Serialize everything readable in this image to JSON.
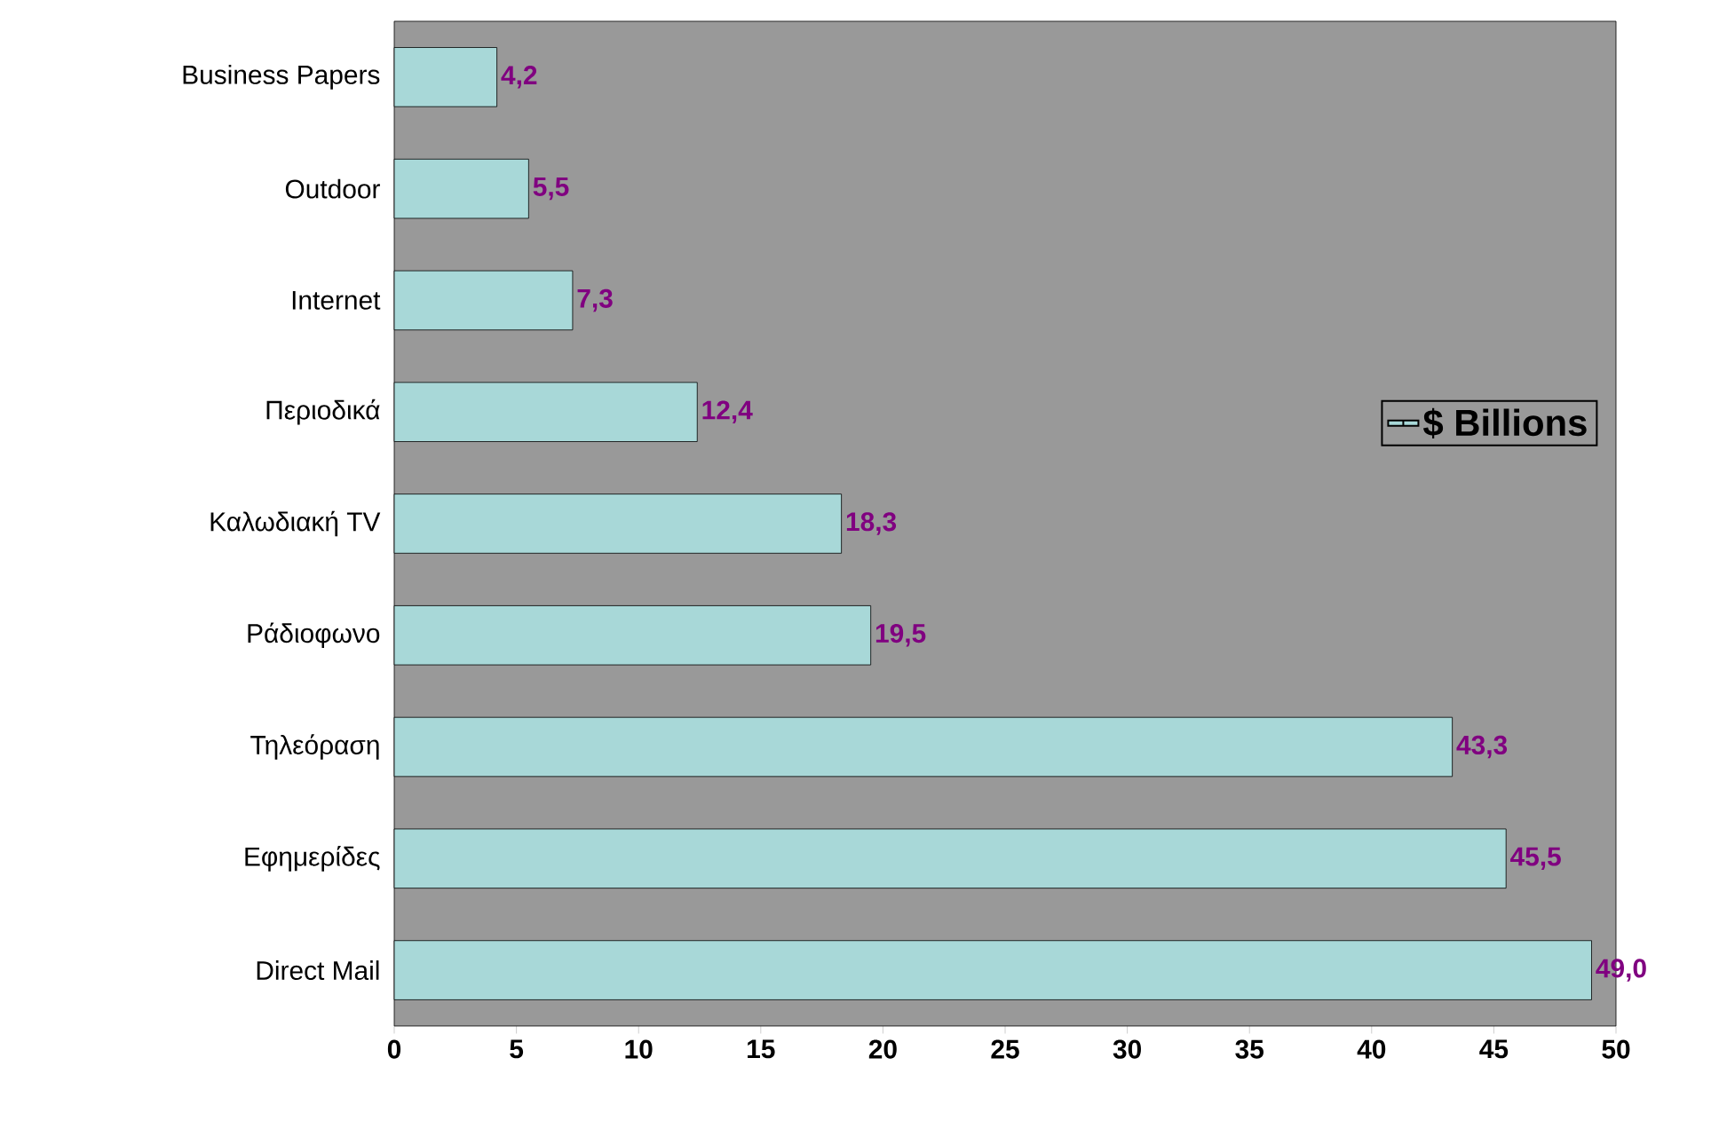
{
  "chart_data": {
    "type": "bar",
    "orientation": "horizontal",
    "categories": [
      "Business Papers",
      "Outdoor",
      "Internet",
      "Περιοδικά",
      "Καλωδιακή TV",
      "Ράδιοφωνο",
      "Τηλεόραση",
      "Εφημερίδες",
      "Direct Mail"
    ],
    "series": [
      {
        "name": "$ Billions",
        "color": "#a8d8d8",
        "values": [
          4.2,
          5.5,
          7.3,
          12.4,
          18.3,
          19.5,
          43.3,
          45.5,
          49.0
        ],
        "value_labels": [
          "4,2",
          "5,5",
          "7,3",
          "12,4",
          "18,3",
          "19,5",
          "43,3",
          "45,5",
          "49,0"
        ]
      }
    ],
    "xlim": [
      0,
      50
    ],
    "xticks": [
      0,
      5,
      10,
      15,
      20,
      25,
      30,
      35,
      40,
      45,
      50
    ],
    "legend": "right",
    "grid": false
  }
}
